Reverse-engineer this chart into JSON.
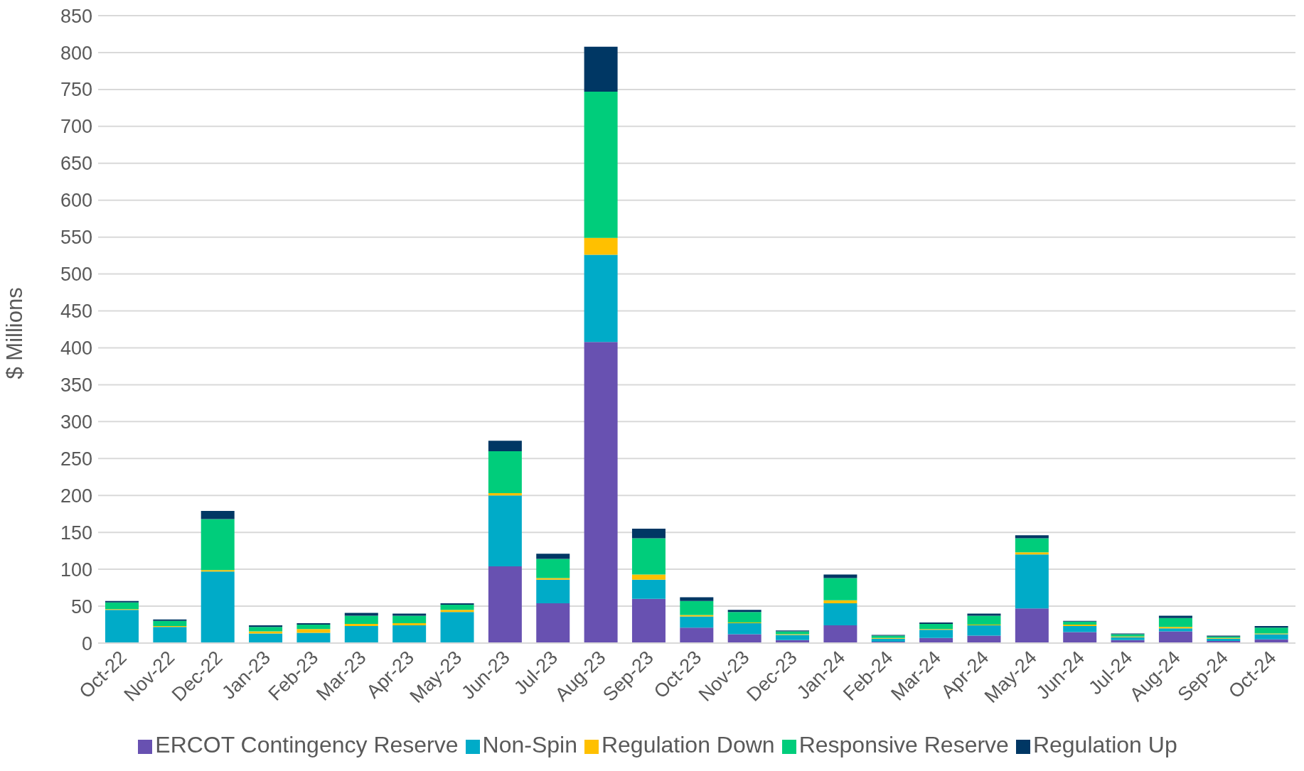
{
  "chart_data": {
    "type": "bar",
    "stacked": true,
    "ylabel": "$ Millions",
    "categories": [
      "Oct-22",
      "Nov-22",
      "Dec-22",
      "Jan-23",
      "Feb-23",
      "Mar-23",
      "Apr-23",
      "May-23",
      "Jun-23",
      "Jul-23",
      "Aug-23",
      "Sep-23",
      "Oct-23",
      "Nov-23",
      "Dec-23",
      "Jan-24",
      "Feb-24",
      "Mar-24",
      "Apr-24",
      "May-24",
      "Jun-24",
      "Jul-24",
      "Aug-24",
      "Sep-24",
      "Oct-24"
    ],
    "series": [
      {
        "name": "ERCOT Contingency Reserve",
        "color": "#6851b1",
        "values": [
          0,
          0,
          0,
          0,
          0,
          0,
          0,
          0,
          104,
          54,
          408,
          60,
          21,
          12,
          4,
          24,
          2,
          7,
          10,
          47,
          15,
          4,
          16,
          3,
          5
        ]
      },
      {
        "name": "Non-Spin",
        "color": "#00abc8",
        "values": [
          45,
          22,
          97,
          13,
          14,
          23,
          24,
          42,
          96,
          32,
          118,
          26,
          15,
          15,
          7,
          30,
          4,
          11,
          14,
          73,
          8,
          4,
          4,
          3,
          7
        ]
      },
      {
        "name": "Regulation Down",
        "color": "#ffc000",
        "values": [
          1,
          1,
          2,
          3,
          5,
          3,
          3,
          3,
          3,
          2,
          23,
          7,
          2,
          1,
          1,
          4,
          1,
          1,
          1,
          3,
          2,
          1,
          2,
          1,
          1
        ]
      },
      {
        "name": "Responsive Reserve",
        "color": "#00cd7b",
        "values": [
          9,
          7,
          69,
          6,
          6,
          11,
          10,
          7,
          57,
          26,
          198,
          49,
          19,
          14,
          4,
          30,
          3,
          7,
          12,
          19,
          4,
          3,
          12,
          2,
          8
        ]
      },
      {
        "name": "Regulation Up",
        "color": "#003764",
        "values": [
          2,
          2,
          11,
          2,
          2,
          4,
          3,
          2,
          14,
          7,
          61,
          13,
          5,
          3,
          1,
          5,
          1,
          2,
          3,
          4,
          1,
          1,
          3,
          1,
          2
        ]
      }
    ],
    "ylim": [
      0,
      850
    ],
    "yticks": [
      0,
      50,
      100,
      150,
      200,
      250,
      300,
      350,
      400,
      450,
      500,
      550,
      600,
      650,
      700,
      750,
      800,
      850
    ],
    "grid": "y",
    "legend": "bottom"
  }
}
